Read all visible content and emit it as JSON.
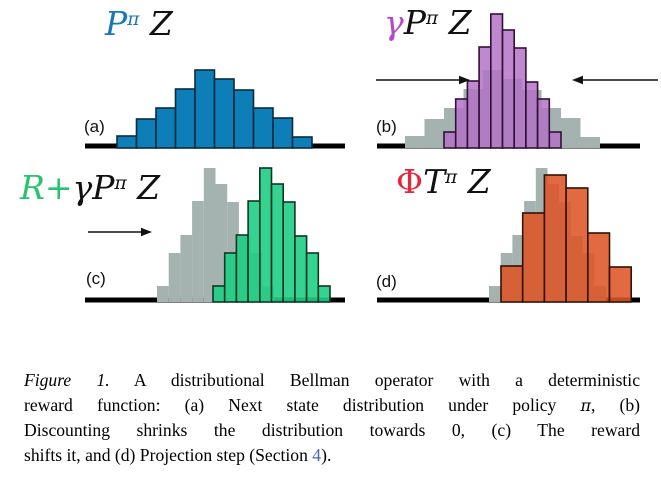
{
  "colors": {
    "blue": "#1a78b8",
    "purple": "#b44ac6",
    "green": "#27c46f",
    "red": "#e6273a",
    "black": "#111111",
    "link": "#4b66a8",
    "gray_fill": "#a4b2b0",
    "blue_fill": "#0e7eb8",
    "purple_fill": "#b371c6",
    "green_fill": "#1fcd85",
    "orange_fill": "#dd5526",
    "axis": "#000000"
  },
  "panels": [
    {
      "tag": "(a)",
      "formula": [
        {
          "t": "P",
          "c": "blue"
        },
        {
          "t": "π",
          "c": "blue",
          "style": "sup"
        },
        {
          "t": " Z"
        }
      ]
    },
    {
      "tag": "(b)",
      "formula": [
        {
          "t": "γ",
          "c": "purple"
        },
        {
          "t": "P"
        },
        {
          "t": "π",
          "style": "sup"
        },
        {
          "t": " Z"
        }
      ]
    },
    {
      "tag": "(c)",
      "formula": [
        {
          "t": "R+",
          "c": "green"
        },
        {
          "t": "γ"
        },
        {
          "t": "P"
        },
        {
          "t": "π",
          "style": "sup"
        },
        {
          "t": " Z"
        }
      ]
    },
    {
      "tag": "(d)",
      "formula": [
        {
          "t": "Φ",
          "c": "red",
          "style": "up"
        },
        {
          "t": "T"
        },
        {
          "t": "π",
          "style": "sup"
        },
        {
          "t": " Z"
        }
      ]
    }
  ],
  "chart_data": [
    {
      "type": "bar",
      "panel": "a",
      "title": "P^π Z : next state distribution under policy π",
      "axis": {
        "x1": 85,
        "x2": 345,
        "y": 146
      },
      "series": [
        {
          "name": "next-state-distribution-blue",
          "fill": "#0e7eb8",
          "stroke": "#0d2b3d",
          "x_start": 117,
          "bar_width": 19.5,
          "heights": [
            10,
            27,
            38,
            57,
            76,
            67,
            56,
            38,
            28,
            9
          ]
        }
      ],
      "arrows": []
    },
    {
      "type": "bar",
      "panel": "b",
      "title": "γ P^π Z : discounting shrinks the distribution towards 0",
      "axis": {
        "x1": 377,
        "x2": 640,
        "y": 146
      },
      "series": [
        {
          "name": "previous-distribution-gray",
          "fill": "#a4b2b0",
          "x_start": 405,
          "bar_width": 19.5,
          "heights": [
            10,
            27,
            38,
            57,
            76,
            67,
            56,
            38,
            28,
            9
          ]
        },
        {
          "name": "shrunk-distribution-purple",
          "fill": "#b371c6",
          "opacity": 0.84,
          "stroke": "#321038",
          "x_start": 444,
          "bar_width": 11.7,
          "heights": [
            14,
            47,
            65,
            99,
            132,
            116,
            98,
            64,
            47,
            14
          ]
        }
      ],
      "arrows": [
        {
          "tail_x": 376,
          "head_x": 470,
          "y": 80
        },
        {
          "tail_x": 658,
          "head_x": 572,
          "y": 80
        }
      ]
    },
    {
      "type": "bar",
      "panel": "c",
      "title": "R + γ P^π Z : the reward shifts the distribution",
      "axis": {
        "x1": 85,
        "x2": 345,
        "y": 300
      },
      "series": [
        {
          "name": "previous-distribution-gray",
          "fill": "#a4b2b0",
          "x_start": 157,
          "bar_width": 11.7,
          "heights": [
            14,
            47,
            65,
            99,
            132,
            116,
            98,
            64,
            47,
            14
          ]
        },
        {
          "name": "shifted-distribution-green",
          "fill": "#1fcd85",
          "opacity": 0.9,
          "stroke": "#0e3822",
          "x_start": 213,
          "bar_width": 11.7,
          "heights": [
            14,
            47,
            65,
            99,
            132,
            116,
            98,
            64,
            47,
            14
          ]
        }
      ],
      "arrows": [
        {
          "tail_x": 88,
          "head_x": 152,
          "y": 232
        }
      ]
    },
    {
      "type": "bar",
      "panel": "d",
      "title": "Φ T^π Z : projection step onto fixed support",
      "axis": {
        "x1": 377,
        "x2": 640,
        "y": 300
      },
      "series": [
        {
          "name": "previous-distribution-gray",
          "fill": "#a4b2b0",
          "x_start": 489,
          "bar_width": 11.7,
          "heights": [
            14,
            47,
            65,
            99,
            132,
            116,
            98,
            64,
            47,
            14
          ]
        },
        {
          "name": "projected-distribution-orange",
          "fill": "#dd5526",
          "opacity": 0.88,
          "stroke": "#331105",
          "x_start": 501,
          "bar_width": 21.7,
          "heights": [
            34,
            87,
            125,
            112,
            67,
            33
          ]
        }
      ],
      "arrows": []
    }
  ],
  "caption": {
    "lines": [
      [
        {
          "t": "Figure 1.",
          "style": "italic"
        },
        {
          "t": " A distributional Bellman operator with a deterministic"
        }
      ],
      [
        {
          "t": "reward function: (a) Next state distribution under policy "
        },
        {
          "t": "π",
          "style": "math"
        },
        {
          "t": ", (b)"
        }
      ],
      [
        {
          "t": "Discounting shrinks the distribution towards 0, (c) The reward"
        }
      ],
      [
        {
          "t": "shifts it, and (d) Projection step (Section "
        },
        {
          "t": "4",
          "style": "link",
          "name": "section-4-link"
        },
        {
          "t": ")."
        }
      ]
    ]
  }
}
